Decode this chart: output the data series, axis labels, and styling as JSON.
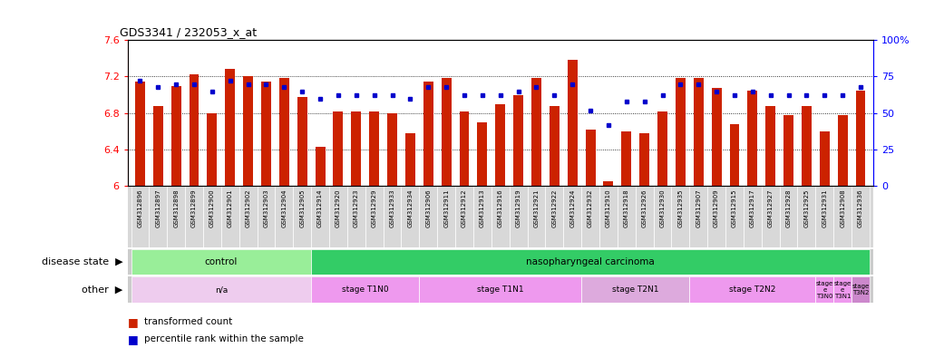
{
  "title": "GDS3341 / 232053_x_at",
  "samples": [
    "GSM312896",
    "GSM312897",
    "GSM312898",
    "GSM312899",
    "GSM312900",
    "GSM312901",
    "GSM312902",
    "GSM312903",
    "GSM312904",
    "GSM312905",
    "GSM312914",
    "GSM312920",
    "GSM312923",
    "GSM312929",
    "GSM312933",
    "GSM312934",
    "GSM312906",
    "GSM312911",
    "GSM312912",
    "GSM312913",
    "GSM312916",
    "GSM312919",
    "GSM312921",
    "GSM312922",
    "GSM312924",
    "GSM312932",
    "GSM312910",
    "GSM312918",
    "GSM312926",
    "GSM312930",
    "GSM312935",
    "GSM312907",
    "GSM312909",
    "GSM312915",
    "GSM312917",
    "GSM312927",
    "GSM312928",
    "GSM312925",
    "GSM312931",
    "GSM312908",
    "GSM312936"
  ],
  "bar_values": [
    7.15,
    6.88,
    7.1,
    7.22,
    6.8,
    7.28,
    7.2,
    7.15,
    7.18,
    6.98,
    6.43,
    6.82,
    6.82,
    6.82,
    6.8,
    6.58,
    7.15,
    7.18,
    6.82,
    6.7,
    6.9,
    7.0,
    7.18,
    6.88,
    7.38,
    6.62,
    6.05,
    6.6,
    6.58,
    6.82,
    7.18,
    7.18,
    7.08,
    6.68,
    7.05,
    6.88,
    6.78,
    6.88,
    6.6,
    6.78,
    7.05
  ],
  "dot_values": [
    72,
    68,
    70,
    70,
    65,
    72,
    70,
    70,
    68,
    65,
    60,
    62,
    62,
    62,
    62,
    60,
    68,
    68,
    62,
    62,
    62,
    65,
    68,
    62,
    70,
    52,
    42,
    58,
    58,
    62,
    70,
    70,
    65,
    62,
    65,
    62,
    62,
    62,
    62,
    62,
    68
  ],
  "ylim_left": [
    6.0,
    7.6
  ],
  "ylim_right": [
    0,
    100
  ],
  "bar_color": "#cc2200",
  "dot_color": "#0000cc",
  "disease_state_groups": [
    {
      "label": "control",
      "start": 0,
      "end": 10,
      "color": "#99ee99"
    },
    {
      "label": "nasopharyngeal carcinoma",
      "start": 10,
      "end": 41,
      "color": "#33cc66"
    }
  ],
  "other_groups": [
    {
      "label": "n/a",
      "start": 0,
      "end": 10,
      "color": "#eeccee"
    },
    {
      "label": "stage T1N0",
      "start": 10,
      "end": 16,
      "color": "#ee99ee"
    },
    {
      "label": "stage T1N1",
      "start": 16,
      "end": 25,
      "color": "#ee99ee"
    },
    {
      "label": "stage T2N1",
      "start": 25,
      "end": 31,
      "color": "#ddaadd"
    },
    {
      "label": "stage T2N2",
      "start": 31,
      "end": 38,
      "color": "#ee99ee"
    },
    {
      "label": "stage\ne\nT3N0",
      "start": 38,
      "end": 39,
      "color": "#ee99ee"
    },
    {
      "label": "stage\ne\nT3N1",
      "start": 39,
      "end": 40,
      "color": "#ee99ee"
    },
    {
      "label": "stage\nT3N2",
      "start": 40,
      "end": 41,
      "color": "#cc88cc"
    }
  ],
  "legend": [
    {
      "label": "transformed count",
      "color": "#cc2200"
    },
    {
      "label": "percentile rank within the sample",
      "color": "#0000cc"
    }
  ]
}
